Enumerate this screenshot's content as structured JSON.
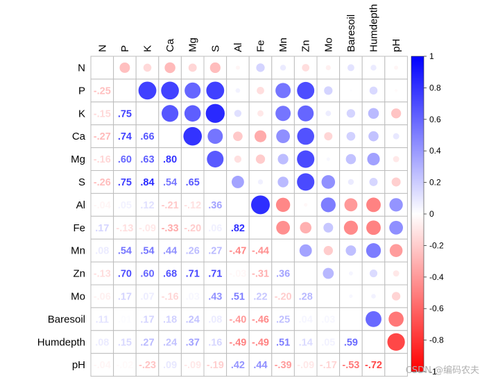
{
  "chart_data": {
    "type": "heatmap",
    "style": "mixed correlation matrix: circles in upper triangle, coefficient numbers in lower triangle",
    "title": "",
    "variables": [
      "N",
      "P",
      "K",
      "Ca",
      "Mg",
      "S",
      "Al",
      "Fe",
      "Mn",
      "Zn",
      "Mo",
      "Baresoil",
      "Humdepth",
      "pH"
    ],
    "lower_matrix": [
      [],
      [
        -0.25
      ],
      [
        -0.15,
        0.75
      ],
      [
        -0.27,
        0.74,
        0.66
      ],
      [
        -0.16,
        0.6,
        0.63,
        0.8
      ],
      [
        -0.26,
        0.75,
        0.84,
        0.54,
        0.65
      ],
      [
        -0.04,
        0.05,
        0.12,
        -0.21,
        -0.12,
        0.36
      ],
      [
        0.17,
        -0.13,
        -0.09,
        -0.33,
        -0.2,
        0.06,
        0.82
      ],
      [
        0.08,
        0.54,
        0.54,
        0.44,
        0.26,
        0.27,
        -0.47,
        -0.44
      ],
      [
        -0.13,
        0.7,
        0.6,
        0.68,
        0.71,
        0.71,
        -0.03,
        -0.31,
        0.36
      ],
      [
        -0.06,
        0.17,
        0.07,
        -0.16,
        0.03,
        0.43,
        0.51,
        0.22,
        -0.2,
        0.28
      ],
      [
        0.11,
        0.01,
        0.17,
        0.18,
        0.24,
        0.08,
        -0.4,
        -0.46,
        0.25,
        0.04,
        0.03
      ],
      [
        0.08,
        0.15,
        0.27,
        0.24,
        0.37,
        0.16,
        -0.49,
        -0.49,
        0.51,
        0.14,
        0.05,
        0.59
      ],
      [
        -0.04,
        -0.02,
        -0.23,
        0.09,
        -0.09,
        -0.19,
        0.42,
        0.44,
        -0.39,
        -0.09,
        -0.17,
        -0.53,
        -0.72
      ]
    ],
    "colorbar": {
      "range": [
        -1,
        1
      ],
      "ticks": [
        "1",
        "0.8",
        "0.6",
        "0.4",
        "0.2",
        "0",
        "-0.2",
        "-0.4",
        "-0.6",
        "-0.8",
        "-1"
      ],
      "low_color": "#ff0000",
      "mid_color": "#ffffff",
      "high_color": "#0000ff"
    },
    "grid": true,
    "legend_position": "right"
  },
  "watermark": "CSDN @编码农夫"
}
